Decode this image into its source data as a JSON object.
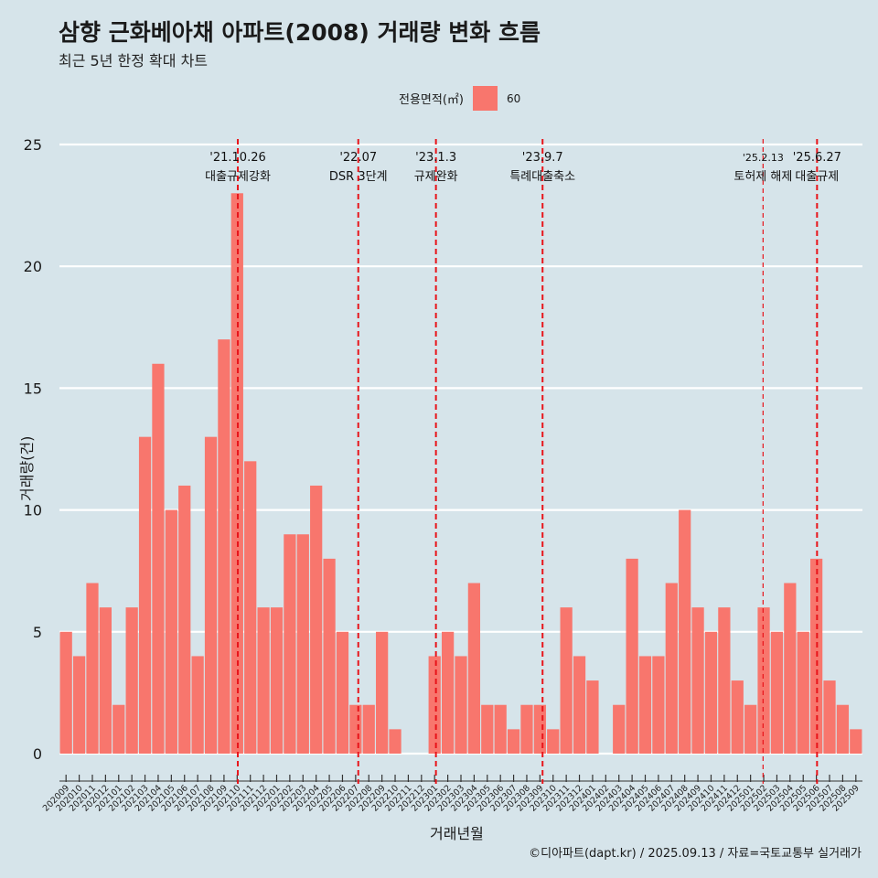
{
  "title": "삼향 근화베아채 아파트(2008) 거래량 변화 흐름",
  "subtitle": "최근 5년 한정 확대 차트",
  "legend": {
    "title": "전용면적(㎡)",
    "entry": "60",
    "color": "#f8766d"
  },
  "caption": "©디아파트(dapt.kr) / 2025.09.13 / 자료=국토교통부 실거래가",
  "chart_data": {
    "type": "bar",
    "title": "삼향 근화베아채 아파트(2008) 거래량 변화 흐름",
    "xlabel": "거래년월",
    "ylabel": "거래량(건)",
    "ylim": [
      0,
      25
    ],
    "yticks": [
      0,
      5,
      10,
      15,
      20,
      25
    ],
    "grid": true,
    "legend_position": "top",
    "bar_color": "#f8766d",
    "categories": [
      "202009",
      "202010",
      "202011",
      "202012",
      "202101",
      "202102",
      "202103",
      "202104",
      "202105",
      "202106",
      "202107",
      "202108",
      "202109",
      "202110",
      "202111",
      "202112",
      "202201",
      "202202",
      "202203",
      "202204",
      "202205",
      "202206",
      "202207",
      "202208",
      "202209",
      "202210",
      "202211",
      "202212",
      "202301",
      "202302",
      "202303",
      "202304",
      "202305",
      "202306",
      "202307",
      "202308",
      "202309",
      "202310",
      "202311",
      "202312",
      "202401",
      "202402",
      "202403",
      "202404",
      "202405",
      "202406",
      "202407",
      "202408",
      "202409",
      "202410",
      "202411",
      "202412",
      "202501",
      "202502",
      "202503",
      "202504",
      "202505",
      "202506",
      "202507",
      "202508",
      "202509"
    ],
    "series": [
      {
        "values": [
          5,
          4,
          7,
          6,
          2,
          6,
          13,
          16,
          10,
          11,
          4,
          13,
          17,
          23,
          12,
          6,
          6,
          9,
          9,
          11,
          8,
          5,
          2,
          2,
          5,
          1,
          0,
          0,
          4,
          5,
          4,
          7,
          2,
          2,
          1,
          2,
          2,
          1,
          6,
          4,
          3,
          0,
          2,
          8,
          4,
          4,
          7,
          10,
          6,
          5,
          6,
          3,
          2,
          6,
          5,
          7,
          5,
          8,
          3,
          2,
          1
        ]
      }
    ],
    "annotations": [
      {
        "category": "202110",
        "offset": 0.05,
        "date": "'21.10.26",
        "label": "대출규제강화",
        "style": "bold-dash"
      },
      {
        "category": "202207",
        "offset": 0.2,
        "date": "'22.07",
        "label": "DSR 3단계",
        "style": "bold-dash"
      },
      {
        "category": "202301",
        "offset": 0.1,
        "date": "'23.1.3",
        "label": "규제완화",
        "style": "bold-dash"
      },
      {
        "category": "202309",
        "offset": 0.2,
        "date": "'23.9.7",
        "label": "특례대출축소",
        "style": "bold-dash"
      },
      {
        "category": "202502",
        "offset": -0.05,
        "date": "'25.2.13",
        "label": "토허제 해제",
        "style": "thin-dash"
      },
      {
        "category": "202506",
        "offset": 0.05,
        "date": "'25.6.27",
        "label": "대출규제",
        "style": "bold-dash"
      }
    ]
  }
}
